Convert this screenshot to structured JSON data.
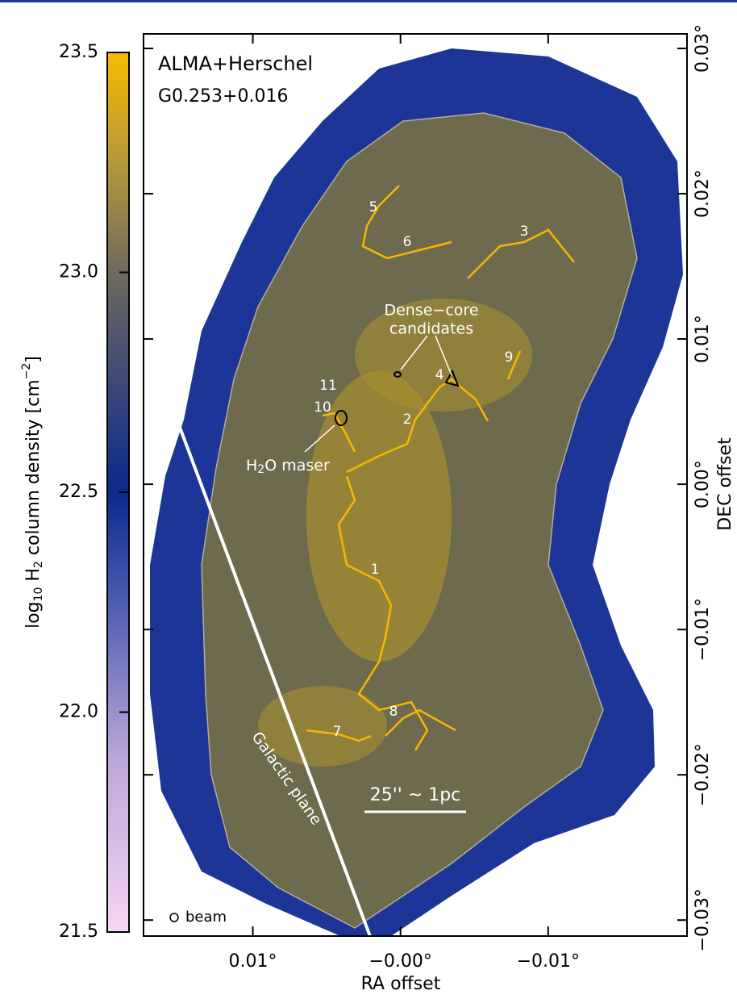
{
  "chart_data": {
    "type": "image",
    "title_lines": [
      "ALMA+Herschel",
      "G0.253+0.016"
    ],
    "xlabel": "RA offset",
    "ylabel": "DEC offset",
    "xlim": [
      0.0174,
      -0.0194
    ],
    "xticks": [
      {
        "value": 0.01,
        "label": "0.01°"
      },
      {
        "value": 0,
        "label": "−0.00°"
      },
      {
        "value": -0.01,
        "label": "−0.01°"
      }
    ],
    "ylim": [
      -0.0311,
      0.031
    ],
    "yticks": [
      {
        "value": -0.03,
        "label": "−0.03°"
      },
      {
        "value": -0.02,
        "label": "−0.02°"
      },
      {
        "value": -0.01,
        "label": "−0.01°"
      },
      {
        "value": 0,
        "label": "0.00°"
      },
      {
        "value": 0.01,
        "label": "0.01°"
      },
      {
        "value": 0.02,
        "label": "0.02°"
      },
      {
        "value": 0.03,
        "label": "0.03°"
      }
    ],
    "colorbar": {
      "label_parts": [
        "log",
        "10",
        " H",
        "2",
        " column density [cm",
        "−2",
        "]"
      ],
      "lim": [
        21.5,
        23.5
      ],
      "ticks": [
        21.5,
        {
          "value": 22,
          "label": "22.0"
        },
        22.5,
        {
          "value": 23,
          "label": "23.0"
        },
        23.5
      ]
    },
    "annotations": {
      "filaments": [
        "1",
        "2",
        "3",
        "4",
        "5",
        "6",
        "7",
        "8",
        "9",
        "10",
        "11"
      ],
      "dense_core": [
        "Dense−core",
        "candidates"
      ],
      "maser": [
        "H",
        "2",
        "O maser"
      ],
      "scale_bar": "25'' ~ 1pc",
      "galactic_plane": "Galactic plane",
      "beam": "beam"
    }
  }
}
